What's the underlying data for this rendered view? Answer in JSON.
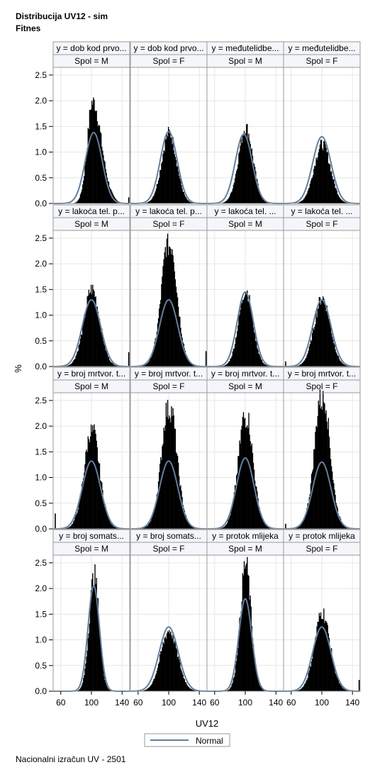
{
  "title_line1": "Distribucija UV12 - sim",
  "title_line2": "Fitnes",
  "footnote": "Nacionalni izračun UV - 2501",
  "colors": {
    "bars": "#000000",
    "normal_curve": "#637f9e",
    "strip_fill": "#f4f6fa",
    "frame": "#9a9a9a",
    "grid": "#e6e6e6"
  },
  "chart_data": {
    "type": "histogram-panel",
    "xlabel": "UV12",
    "ylabel": "%",
    "xticks": [
      60,
      100,
      140
    ],
    "xlim": [
      50,
      150
    ],
    "yticks": [
      "0.0",
      "0.5",
      "1.0",
      "1.5",
      "2.0",
      "2.5"
    ],
    "ylim": [
      0,
      2.65
    ],
    "grid": true,
    "legend": {
      "position": "bottom-center",
      "entries": [
        "Normal"
      ]
    },
    "rows": [
      {
        "panels": [
          {
            "label1": "y = dob kod prvo...",
            "label2": "Spol = M",
            "peak_x": 101,
            "peak_y": 2.0,
            "normal_mean": 103,
            "normal_peak": 1.38,
            "sd": 11,
            "skew": 0.25,
            "spikes": [
              {
                "x": 148,
                "y": 0.12
              }
            ]
          },
          {
            "label1": "y = dob kod prvo...",
            "label2": "Spol = F",
            "peak_x": 100,
            "peak_y": 1.55,
            "normal_mean": 100,
            "normal_peak": 1.4,
            "sd": 11,
            "skew": 0,
            "spikes": []
          },
          {
            "label1": "y = međutelidbe...",
            "label2": "Spol = M",
            "peak_x": 100,
            "peak_y": 1.6,
            "normal_mean": 98,
            "normal_peak": 1.35,
            "sd": 11,
            "skew": 0,
            "spikes": []
          },
          {
            "label1": "y = međutelidbe...",
            "label2": "Spol = F",
            "peak_x": 100,
            "peak_y": 1.35,
            "normal_mean": 100,
            "normal_peak": 1.3,
            "sd": 12,
            "skew": 0,
            "spikes": []
          }
        ]
      },
      {
        "panels": [
          {
            "label1": "y = lakoća tel. p...",
            "label2": "Spol = M",
            "peak_x": 100,
            "peak_y": 1.6,
            "normal_mean": 100,
            "normal_peak": 1.3,
            "sd": 12,
            "skew": 0,
            "spikes": [
              {
                "x": 148,
                "y": 0.28
              }
            ]
          },
          {
            "label1": "y = lakoća tel. p...",
            "label2": "Spol = F",
            "peak_x": 100,
            "peak_y": 2.4,
            "normal_mean": 100,
            "normal_peak": 1.3,
            "sd": 12,
            "skew": 0,
            "spikes": [
              {
                "x": 148,
                "y": 0.3
              }
            ]
          },
          {
            "label1": "y = lakoća tel. ...",
            "label2": "Spol = M",
            "peak_x": 100,
            "peak_y": 1.65,
            "normal_mean": 100,
            "normal_peak": 1.45,
            "sd": 10.5,
            "skew": 0,
            "spikes": []
          },
          {
            "label1": "y = lakoća tel. ...",
            "label2": "Spol = F",
            "peak_x": 100,
            "peak_y": 1.48,
            "normal_mean": 100,
            "normal_peak": 1.3,
            "sd": 12,
            "skew": 0,
            "spikes": [
              {
                "x": 52,
                "y": 0.1
              }
            ]
          }
        ]
      },
      {
        "panels": [
          {
            "label1": "y = broj mrtvor. t...",
            "label2": "Spol = M",
            "peak_x": 100,
            "peak_y": 1.93,
            "normal_mean": 100,
            "normal_peak": 1.32,
            "sd": 12,
            "skew": 0,
            "spikes": [
              {
                "x": 52,
                "y": 0.3
              }
            ]
          },
          {
            "label1": "y = broj mrtvor. t...",
            "label2": "Spol = F",
            "peak_x": 100,
            "peak_y": 2.35,
            "normal_mean": 100,
            "normal_peak": 1.32,
            "sd": 12,
            "skew": 0,
            "spikes": []
          },
          {
            "label1": "y = broj mrtvor. t...",
            "label2": "Spol = M",
            "peak_x": 100,
            "peak_y": 2.2,
            "normal_mean": 100,
            "normal_peak": 1.38,
            "sd": 11.5,
            "skew": 0,
            "spikes": []
          },
          {
            "label1": "y = broj mrtvor. t...",
            "label2": "Spol = F",
            "peak_x": 100,
            "peak_y": 2.55,
            "normal_mean": 100,
            "normal_peak": 1.3,
            "sd": 12,
            "skew": 0,
            "spikes": [
              {
                "x": 52,
                "y": 0.1
              }
            ]
          }
        ]
      },
      {
        "panels": [
          {
            "label1": "y = broj somats...",
            "label2": "Spol = M",
            "peak_x": 103,
            "peak_y": 2.45,
            "normal_mean": 103,
            "normal_peak": 2.05,
            "sd": 7.5,
            "skew": 0,
            "spikes": []
          },
          {
            "label1": "y = broj somats...",
            "label2": "Spol = F",
            "peak_x": 100,
            "peak_y": 1.35,
            "normal_mean": 100,
            "normal_peak": 1.25,
            "sd": 12.5,
            "skew": 0,
            "spikes": []
          },
          {
            "label1": "y = protok mlijeka",
            "label2": "Spol = M",
            "peak_x": 100,
            "peak_y": 2.5,
            "normal_mean": 100,
            "normal_peak": 1.8,
            "sd": 8.5,
            "skew": 0,
            "spikes": []
          },
          {
            "label1": "y = protok mlijeka",
            "label2": "Spol = F",
            "peak_x": 100,
            "peak_y": 1.6,
            "normal_mean": 100,
            "normal_peak": 1.25,
            "sd": 12,
            "skew": 0,
            "spikes": [
              {
                "x": 148,
                "y": 0.22
              }
            ]
          }
        ]
      }
    ]
  }
}
